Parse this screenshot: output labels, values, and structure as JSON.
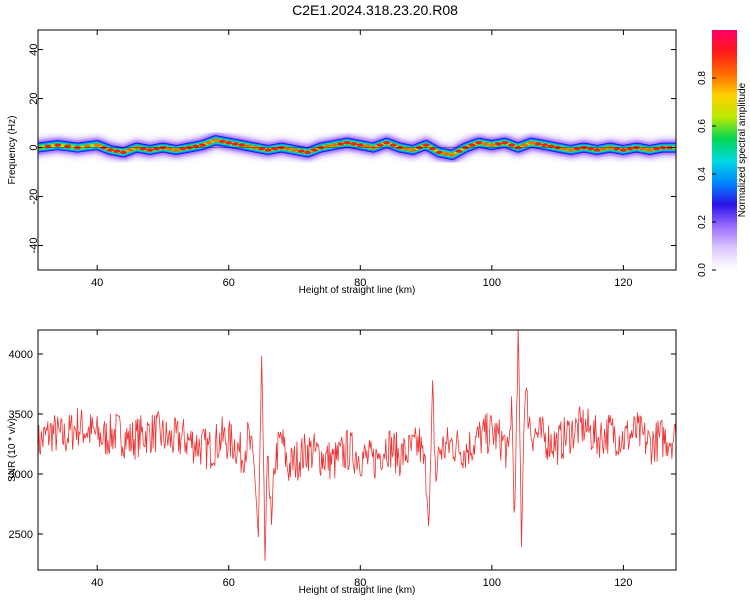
{
  "title": "C2E1.2024.318.23.20.R08",
  "colors": {
    "snr_line": "#ee3333",
    "frame": "#000000",
    "colormap": [
      "#ffffff",
      "#dcc8ff",
      "#9b6cff",
      "#2a14e6",
      "#0088ff",
      "#00d9e0",
      "#00d655",
      "#b9e800",
      "#ffd000",
      "#ff6a00",
      "#ff1a1a",
      "#ff0066"
    ]
  },
  "colorbar": {
    "label": "Normalized spectral amplitude",
    "ticks": [
      "0.0",
      "0.2",
      "0.4",
      "0.6",
      "0.8"
    ],
    "tick_values": [
      0.0,
      0.2,
      0.4,
      0.6,
      0.8
    ],
    "range": [
      0,
      1
    ]
  },
  "chart_data": [
    {
      "type": "heatmap",
      "name": "spectrogram",
      "xlabel": "Height of straight line (km)",
      "ylabel": "Frequency (Hz)",
      "xlim": [
        31,
        128
      ],
      "ylim": [
        -50,
        48
      ],
      "xticks": [
        40,
        60,
        80,
        100,
        120
      ],
      "xtick_labels": [
        "40",
        "60",
        "80",
        "100",
        "120"
      ],
      "yticks": [
        40,
        20,
        0,
        -20,
        -40
      ],
      "ytick_labels": [
        "40",
        "20",
        "0",
        "-20",
        "-40"
      ],
      "ridge": {
        "x": [
          31,
          34,
          37,
          40,
          42,
          44,
          46,
          48,
          50,
          52,
          54,
          56,
          58,
          60,
          62,
          64,
          66,
          68,
          70,
          72,
          74,
          76,
          78,
          80,
          82,
          84,
          86,
          88,
          90,
          92,
          94,
          96,
          98,
          100,
          102,
          104,
          106,
          108,
          110,
          112,
          114,
          116,
          118,
          120,
          122,
          124,
          126,
          128
        ],
        "frequency_hz": [
          0,
          1,
          0,
          1,
          -1,
          -2,
          0,
          -1,
          0,
          -1,
          0,
          1,
          3,
          2,
          1,
          0,
          -1,
          0,
          -1,
          -2,
          0,
          1,
          2,
          1,
          0,
          2,
          0,
          -1,
          1,
          -2,
          -3,
          0,
          2,
          1,
          2,
          0,
          2,
          1,
          0,
          -1,
          0,
          -1,
          0,
          -1,
          0,
          -1,
          0,
          0
        ]
      }
    },
    {
      "type": "line",
      "name": "snr",
      "xlabel": "Height of straight line (km)",
      "ylabel": "SNR (10 * v/v)",
      "xlim": [
        31,
        128
      ],
      "ylim": [
        2200,
        4200
      ],
      "xticks": [
        40,
        60,
        80,
        100,
        120
      ],
      "xtick_labels": [
        "40",
        "60",
        "80",
        "100",
        "120"
      ],
      "yticks": [
        2500,
        3000,
        3500,
        4000
      ],
      "ytick_labels": [
        "2500",
        "3000",
        "3500",
        "4000"
      ],
      "series": [
        {
          "x": [
            31,
            33,
            35,
            37,
            39,
            41,
            43,
            45,
            47,
            49,
            51,
            53,
            55,
            57,
            59,
            61,
            62,
            63,
            64,
            64.5,
            65,
            65.5,
            66,
            66.5,
            67,
            68,
            69,
            70,
            72,
            74,
            76,
            78,
            80,
            82,
            84,
            86,
            88,
            89,
            90,
            90.5,
            91,
            91.5,
            92,
            94,
            96,
            98,
            100,
            101,
            102,
            102.5,
            103,
            103.5,
            104,
            104.5,
            105,
            106,
            108,
            110,
            112,
            114,
            116,
            118,
            120,
            122,
            124,
            126,
            128
          ],
          "y": [
            3250,
            3350,
            3300,
            3400,
            3350,
            3300,
            3350,
            3280,
            3330,
            3350,
            3280,
            3300,
            3250,
            3200,
            3300,
            3250,
            3150,
            3300,
            3000,
            2450,
            3900,
            2300,
            3200,
            2500,
            3100,
            3300,
            3050,
            3100,
            3200,
            3150,
            3100,
            3200,
            3150,
            3100,
            3250,
            3150,
            3200,
            3250,
            3000,
            2650,
            3650,
            2950,
            3200,
            3250,
            3200,
            3300,
            3350,
            3300,
            3250,
            3100,
            3600,
            2600,
            4150,
            2500,
            3700,
            3350,
            3300,
            3250,
            3350,
            3400,
            3300,
            3350,
            3300,
            3350,
            3250,
            3300,
            3300
          ]
        }
      ]
    }
  ]
}
